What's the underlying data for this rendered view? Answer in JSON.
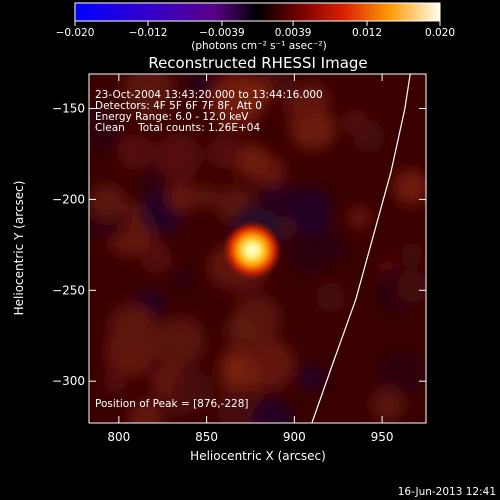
{
  "chart_data": {
    "type": "heatmap",
    "title": "Reconstructed RHESSI Image",
    "xlabel": "Heliocentric X (arcsec)",
    "ylabel": "Heliocentric Y (arcsec)",
    "xlim": [
      783,
      975
    ],
    "ylim": [
      -323,
      -131
    ],
    "x_ticks": [
      800,
      850,
      900,
      950
    ],
    "y_ticks": [
      -150,
      -200,
      -250,
      -300
    ],
    "colorbar": {
      "range": [
        -0.02,
        0.02
      ],
      "tick_values": [
        -0.02,
        -0.012,
        -0.0039,
        0.0039,
        0.012,
        0.02
      ],
      "tick_labels": [
        "−0.020",
        "−0.012",
        "−0.0039",
        "0.0039",
        "0.012",
        "0.020"
      ],
      "unit_label": "(photons cm⁻² s⁻¹ asec⁻²)"
    },
    "info_lines": [
      "23-Oct-2004 13:43:20.000 to 13:44:16.000",
      "Detectors: 4F 5F 6F 7F 8F, Att 0",
      "Energy Range: 6.0 - 12.0 keV",
      "Clean    Total counts: 1.26E+04"
    ],
    "peak_label": "Position of Peak = [876,-228]",
    "peak": {
      "x": 876,
      "y": -228,
      "value": 0.02
    },
    "background_level": 0.0015,
    "limb_curve": [
      [
        910,
        -323
      ],
      [
        922,
        -290
      ],
      [
        935,
        -255
      ],
      [
        945,
        -220
      ],
      [
        955,
        -185
      ],
      [
        963,
        -150
      ],
      [
        966,
        -131
      ]
    ],
    "footer_date": "16-Jun-2013 12:41"
  }
}
